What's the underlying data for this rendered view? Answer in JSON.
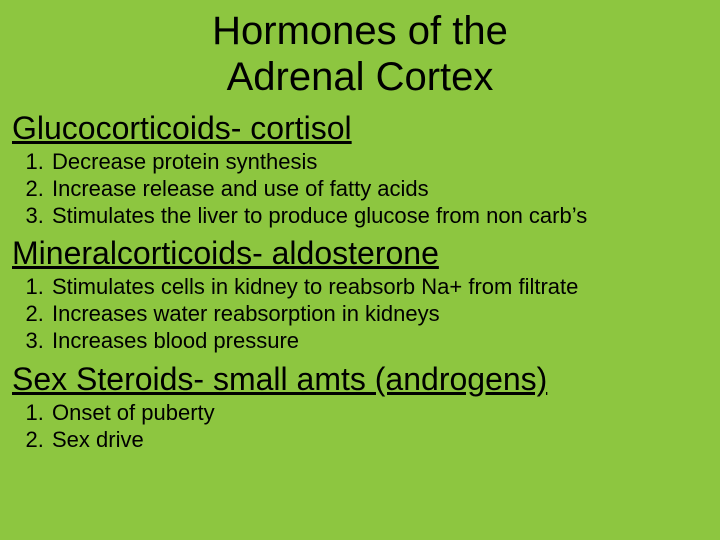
{
  "colors": {
    "background": "#8dc640",
    "text": "#000000"
  },
  "typography": {
    "title_fontsize": 40,
    "heading_fontsize": 32,
    "body_fontsize": 22,
    "font_family": "Arial"
  },
  "title": {
    "line1": "Hormones of the",
    "line2": "Adrenal Cortex"
  },
  "sections": [
    {
      "heading": "Glucocorticoids- cortisol",
      "items": [
        "Decrease protein synthesis",
        "Increase release and use of fatty acids",
        "Stimulates the liver to produce glucose from non carb’s"
      ]
    },
    {
      "heading": "Mineralcorticoids- aldosterone",
      "items": [
        "Stimulates cells in kidney to reabsorb Na+ from filtrate",
        "Increases water reabsorption in kidneys",
        "Increases blood pressure"
      ]
    },
    {
      "heading": "Sex Steroids- small amts (androgens)",
      "items": [
        "Onset of puberty",
        "Sex drive"
      ]
    }
  ]
}
